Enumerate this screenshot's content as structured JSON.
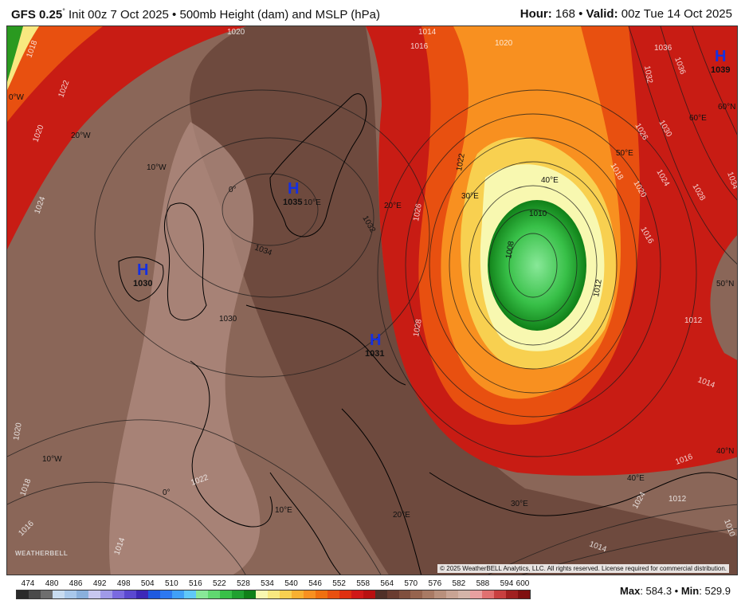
{
  "header": {
    "model": "GFS 0.25",
    "degree": "°",
    "init": " Init 00z 7 Oct 2025 • 500mb Height (dam) and MSLP (hPa)",
    "hour_label": "Hour:",
    "hour_value": " 168 • ",
    "valid_label": "Valid:",
    "valid_value": " 00z Tue 14 Oct 2025"
  },
  "map": {
    "high_letter": "H",
    "highs": [
      {
        "value": "1039"
      },
      {
        "value": "1035"
      },
      {
        "value": "1030"
      },
      {
        "value": "1031"
      }
    ],
    "isobar_labels": [
      "1020",
      "1018",
      "1022",
      "1020",
      "1024",
      "1034",
      "1030",
      "1032",
      "1028",
      "1026",
      "1022",
      "1016",
      "1014",
      "1020",
      "1036",
      "1032",
      "1036",
      "1030",
      "1028",
      "1026",
      "1024",
      "1020",
      "1018",
      "1016",
      "1012",
      "1010",
      "1008",
      "1012",
      "1014",
      "1016",
      "1022",
      "1020",
      "1018",
      "1016",
      "1014",
      "1012",
      "1014",
      "1024",
      "1034",
      "1010"
    ],
    "grid_labels": [
      "0°W",
      "20°W",
      "10°W",
      "0°",
      "10°E",
      "20°E",
      "30°E",
      "40°E",
      "50°E",
      "60°E",
      "60°N",
      "50°N",
      "40°N",
      "40°E",
      "30°E",
      "20°E",
      "10°E",
      "0°",
      "10°W"
    ],
    "logo": "WEATHERBELL",
    "copyright": "© 2025 WeatherBELL Analytics, LLC. All rights reserved. License required for commercial distribution."
  },
  "colorbar": {
    "ticks": [
      "474",
      "480",
      "486",
      "492",
      "498",
      "504",
      "510",
      "516",
      "522",
      "528",
      "534",
      "540",
      "546",
      "552",
      "558",
      "564",
      "570",
      "576",
      "582",
      "588",
      "594",
      "600"
    ],
    "colors": [
      "#2a2a2a",
      "#4a4a4a",
      "#6e6e6e",
      "#c8dcf0",
      "#a9c8ea",
      "#8ab0dc",
      "#c8c8f0",
      "#a09ae8",
      "#7a6ae0",
      "#5a48d0",
      "#3c28b8",
      "#1e5ae0",
      "#2c78f0",
      "#40a0f8",
      "#60c8f8",
      "#88e898",
      "#60d870",
      "#38c048",
      "#20a030",
      "#108018",
      "#f8f8b0",
      "#f8e880",
      "#f8d050",
      "#f8b030",
      "#f89020",
      "#f07010",
      "#e85010",
      "#e03010",
      "#d01818",
      "#b81010",
      "#503028",
      "#6a3c30",
      "#80503e",
      "#96644e",
      "#a87a64",
      "#b8907c",
      "#c8a494",
      "#d4b4a8",
      "#e8a0a0",
      "#e07070",
      "#c84040",
      "#a02020",
      "#801010"
    ]
  },
  "stats": {
    "max_label": "Max",
    "max_value": ": 584.3 • ",
    "min_label": "Min",
    "min_value": ": 529.9"
  }
}
